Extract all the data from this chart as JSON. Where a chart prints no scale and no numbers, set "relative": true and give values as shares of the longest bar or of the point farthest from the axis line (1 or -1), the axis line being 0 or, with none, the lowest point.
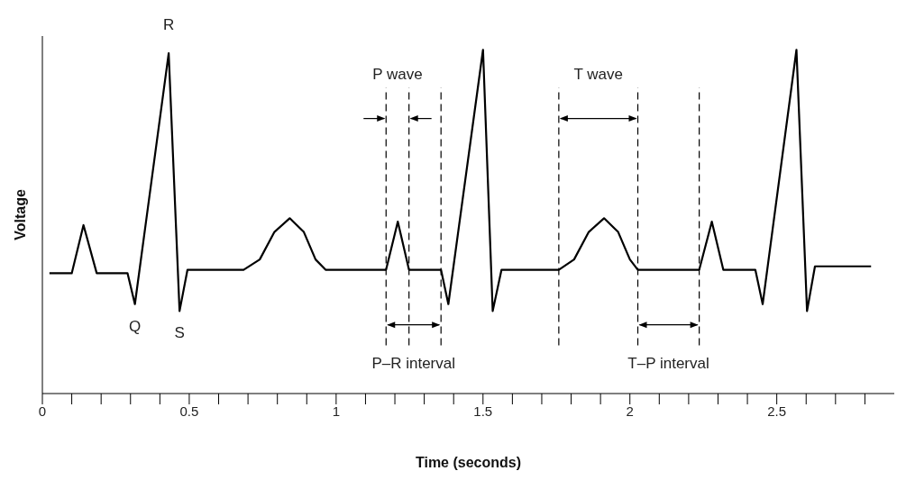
{
  "chart_data": {
    "type": "line",
    "relative": true,
    "xlabel": "Time (seconds)",
    "ylabel": "Voltage",
    "xlim": [
      0,
      2.9
    ],
    "xticks": [
      0,
      {
        "value": 0.1,
        "label": null
      },
      {
        "value": 0.2,
        "label": null
      },
      {
        "value": 0.3,
        "label": null
      },
      {
        "value": 0.4,
        "label": null
      },
      0.5,
      {
        "value": 0.6,
        "label": null
      },
      {
        "value": 0.7,
        "label": null
      },
      {
        "value": 0.8,
        "label": null
      },
      {
        "value": 0.9,
        "label": null
      },
      1,
      {
        "value": 1.1,
        "label": null
      },
      {
        "value": 1.2,
        "label": null
      },
      {
        "value": 1.3,
        "label": null
      },
      {
        "value": 1.4,
        "label": null
      },
      1.5,
      {
        "value": 1.6,
        "label": null
      },
      {
        "value": 1.7,
        "label": null
      },
      {
        "value": 1.8,
        "label": null
      },
      {
        "value": 1.9,
        "label": null
      },
      2,
      {
        "value": 2.1,
        "label": null
      },
      {
        "value": 2.2,
        "label": null
      },
      {
        "value": 2.3,
        "label": null
      },
      {
        "value": 2.4,
        "label": null
      },
      2.5,
      {
        "value": 2.6,
        "label": null
      },
      {
        "value": 2.7,
        "label": null
      },
      {
        "value": 2.8,
        "label": null
      }
    ],
    "grid": false,
    "legend": false,
    "marker": "none",
    "line_style": "solid",
    "series": [
      {
        "color": "#000000",
        "x": [
          0.024,
          0.1,
          0.14,
          0.185,
          0.29,
          0.315,
          0.43,
          0.467,
          0.494,
          0.685,
          0.74,
          0.79,
          0.842,
          0.89,
          0.93,
          0.964,
          1.17,
          1.21,
          1.248,
          1.357,
          1.382,
          1.5,
          1.533,
          1.563,
          1.758,
          1.81,
          1.86,
          1.912,
          1.96,
          2.0,
          2.027,
          2.236,
          2.279,
          2.318,
          2.427,
          2.452,
          2.567,
          2.603,
          2.63,
          2.821
        ],
        "values": [
          0.35,
          0.35,
          0.49,
          0.35,
          0.35,
          0.26,
          0.99,
          0.24,
          0.36,
          0.36,
          0.39,
          0.47,
          0.51,
          0.47,
          0.39,
          0.36,
          0.36,
          0.5,
          0.36,
          0.36,
          0.26,
          1.0,
          0.24,
          0.36,
          0.36,
          0.39,
          0.47,
          0.51,
          0.47,
          0.39,
          0.36,
          0.36,
          0.5,
          0.36,
          0.36,
          0.26,
          1.0,
          0.24,
          0.37,
          0.37
        ]
      }
    ],
    "ref_lines": [
      {
        "axis": "x",
        "value": 1.17,
        "color": "#000000",
        "line_style": "dashed"
      },
      {
        "axis": "x",
        "value": 1.248,
        "color": "#000000",
        "line_style": "dashed"
      },
      {
        "axis": "x",
        "value": 1.357,
        "color": "#000000",
        "line_style": "dashed"
      },
      {
        "axis": "x",
        "value": 1.758,
        "color": "#000000",
        "line_style": "dashed"
      },
      {
        "axis": "x",
        "value": 2.027,
        "color": "#000000",
        "line_style": "dashed"
      },
      {
        "axis": "x",
        "value": 2.236,
        "color": "#000000",
        "line_style": "dashed"
      }
    ],
    "annotations": [
      {
        "text": "R",
        "x": 0.43,
        "y": 0.99
      },
      {
        "text": "Q",
        "x": 0.315,
        "y": 0.26
      },
      {
        "text": "S",
        "x": 0.467,
        "y": 0.24
      },
      "P wave",
      "P–R interval",
      "T wave",
      "T–P interval"
    ]
  }
}
